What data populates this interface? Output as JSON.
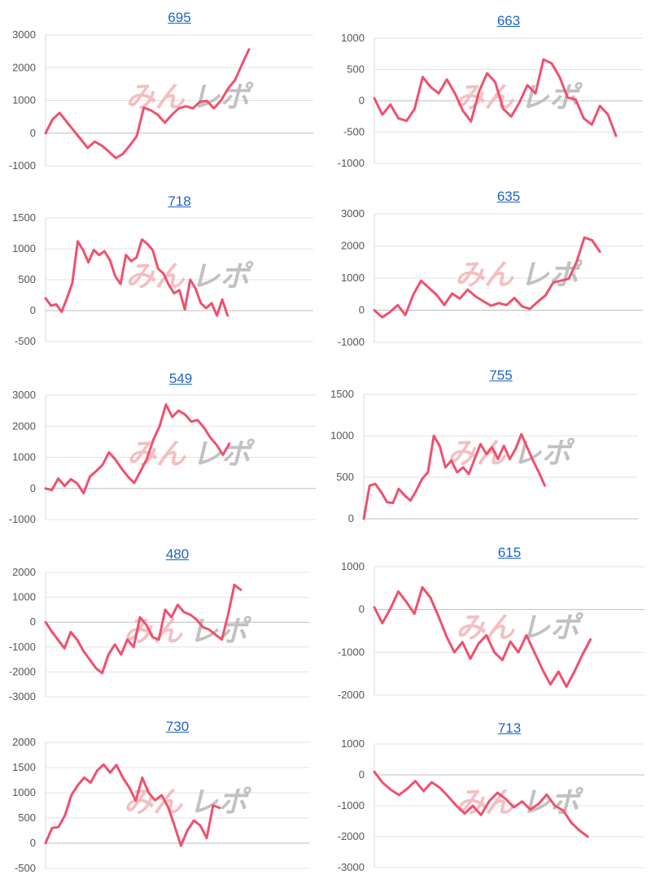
{
  "watermark": {
    "part1": "みん",
    "part2": "レポ"
  },
  "colors": {
    "series": "#f0506e",
    "title_link": "#1f63c4"
  },
  "chart_data": [
    {
      "type": "line",
      "title": "695",
      "ylim": [
        -1000,
        3000
      ],
      "yticks": [
        "3000",
        "2000",
        "1000",
        "0",
        "-1000"
      ],
      "grid": true,
      "series": [
        {
          "values": [
            0,
            420,
            620,
            350,
            80,
            -180,
            -450,
            -260,
            -380,
            -560,
            -760,
            -640,
            -380,
            -90,
            780,
            700,
            560,
            320,
            560,
            760,
            820,
            760,
            960,
            980,
            760,
            1000,
            1360,
            1620,
            2100,
            2560
          ]
        }
      ]
    },
    {
      "type": "line",
      "title": "663",
      "ylim": [
        -1000,
        1000
      ],
      "yticks": [
        "1000",
        "500",
        "0",
        "-500",
        "-1000"
      ],
      "grid": true,
      "series": [
        {
          "values": [
            40,
            -220,
            -60,
            -280,
            -320,
            -130,
            380,
            220,
            120,
            340,
            120,
            -160,
            -330,
            150,
            440,
            300,
            -130,
            -250,
            -30,
            250,
            120,
            660,
            600,
            380,
            50,
            20,
            -280,
            -380,
            -80,
            -220,
            -560
          ]
        }
      ]
    },
    {
      "type": "line",
      "title": "718",
      "ylim": [
        -500,
        1500
      ],
      "yticks": [
        "1500",
        "1000",
        "500",
        "0",
        "-500"
      ],
      "grid": true,
      "series": [
        {
          "values": [
            200,
            80,
            100,
            -20,
            200,
            450,
            1120,
            980,
            780,
            980,
            900,
            960,
            820,
            560,
            430,
            900,
            800,
            860,
            1150,
            1080,
            980,
            680,
            600,
            420,
            280,
            330,
            20,
            500,
            360,
            120,
            40,
            120,
            -80,
            180,
            -80
          ]
        }
      ]
    },
    {
      "type": "line",
      "title": "635",
      "ylim": [
        -1000,
        3000
      ],
      "yticks": [
        "3000",
        "2000",
        "1000",
        "0",
        "-1000"
      ],
      "grid": true,
      "series": [
        {
          "values": [
            0,
            -220,
            -60,
            160,
            -150,
            480,
            920,
            700,
            480,
            160,
            520,
            360,
            640,
            430,
            280,
            140,
            220,
            160,
            380,
            120,
            40,
            260,
            460,
            860,
            920,
            980,
            1500,
            2260,
            2180,
            1820
          ]
        }
      ]
    },
    {
      "type": "line",
      "title": "549",
      "ylim": [
        -1000,
        3000
      ],
      "yticks": [
        "3000",
        "2000",
        "1000",
        "0",
        "-1000"
      ],
      "grid": true,
      "series": [
        {
          "values": [
            0,
            -50,
            320,
            80,
            300,
            160,
            -150,
            380,
            560,
            760,
            1160,
            940,
            640,
            380,
            180,
            560,
            960,
            1560,
            2000,
            2700,
            2300,
            2500,
            2380,
            2150,
            2200,
            1960,
            1640,
            1400,
            1080,
            1440
          ]
        }
      ]
    },
    {
      "type": "line",
      "title": "755",
      "ylim": [
        0,
        1500
      ],
      "yticks": [
        "1500",
        "1000",
        "500",
        "0"
      ],
      "grid": true,
      "series": [
        {
          "values": [
            0,
            400,
            420,
            320,
            200,
            190,
            360,
            280,
            220,
            340,
            480,
            560,
            1000,
            880,
            620,
            700,
            560,
            620,
            540,
            720,
            900,
            780,
            860,
            720,
            880,
            720,
            840,
            1020,
            860,
            700,
            560,
            400
          ]
        }
      ]
    },
    {
      "type": "line",
      "title": "480",
      "ylim": [
        -3000,
        2000
      ],
      "yticks": [
        "2000",
        "1000",
        "0",
        "-1000",
        "-2000",
        "-3000"
      ],
      "grid": true,
      "series": [
        {
          "values": [
            0,
            -380,
            -720,
            -1050,
            -400,
            -700,
            -1150,
            -1500,
            -1850,
            -2050,
            -1300,
            -900,
            -1300,
            -700,
            -1000,
            200,
            -100,
            -600,
            -700,
            500,
            200,
            700,
            400,
            300,
            100,
            -200,
            -300,
            -500,
            -700,
            300,
            1500,
            1300
          ]
        }
      ]
    },
    {
      "type": "line",
      "title": "615",
      "ylim": [
        -2000,
        1000
      ],
      "yticks": [
        "1000",
        "0",
        "-1000",
        "-2000"
      ],
      "grid": true,
      "series": [
        {
          "values": [
            50,
            -320,
            20,
            420,
            180,
            -100,
            520,
            280,
            -150,
            -620,
            -1000,
            -760,
            -1150,
            -800,
            -600,
            -1000,
            -1180,
            -750,
            -1000,
            -600,
            -1000,
            -1400,
            -1750,
            -1450,
            -1800,
            -1450,
            -1050,
            -700
          ]
        }
      ]
    },
    {
      "type": "line",
      "title": "730",
      "ylim": [
        -500,
        2000
      ],
      "yticks": [
        "2000",
        "1500",
        "1000",
        "500",
        "0",
        "-500"
      ],
      "grid": true,
      "series": [
        {
          "values": [
            0,
            300,
            320,
            550,
            950,
            1150,
            1300,
            1200,
            1440,
            1560,
            1400,
            1550,
            1300,
            1100,
            840,
            1300,
            1000,
            850,
            950,
            720,
            350,
            -50,
            250,
            450,
            350,
            100,
            750,
            700
          ]
        }
      ]
    },
    {
      "type": "line",
      "title": "713",
      "ylim": [
        -3000,
        1000
      ],
      "yticks": [
        "1000",
        "0",
        "-1000",
        "-2000",
        "-3000"
      ],
      "grid": true,
      "series": [
        {
          "values": [
            100,
            -250,
            -480,
            -650,
            -450,
            -200,
            -520,
            -240,
            -420,
            -700,
            -1000,
            -1250,
            -1000,
            -1300,
            -850,
            -580,
            -780,
            -1050,
            -860,
            -1120,
            -940,
            -640,
            -1000,
            -1150,
            -1550,
            -1800,
            -2000
          ]
        }
      ]
    }
  ]
}
